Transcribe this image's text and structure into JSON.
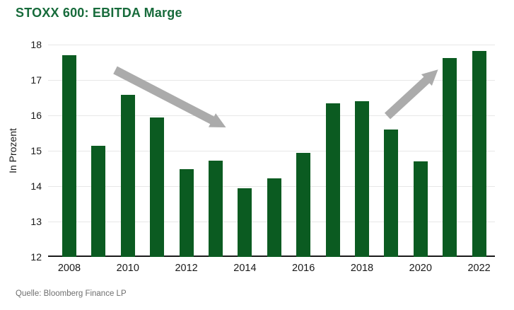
{
  "title": "STOXX 600: EBITDA Marge",
  "source": "Quelle: Bloomberg Finance LP",
  "colors": {
    "title-green": "#176b3b",
    "bar-green": "#0b5b21",
    "grid-gray": "#e7e7e7",
    "arrow-gray": "#ababab",
    "source-gray": "#6f6f6f"
  },
  "chart_data": {
    "type": "bar",
    "title": "STOXX 600: EBITDA Marge",
    "xlabel": "",
    "ylabel": "In Prozent",
    "ylim": [
      12,
      18
    ],
    "yticks": [
      12,
      13,
      14,
      15,
      16,
      17,
      18
    ],
    "grid": "horizontal",
    "legend": "none",
    "categories": [
      2008,
      2009,
      2010,
      2011,
      2012,
      2013,
      2014,
      2015,
      2016,
      2017,
      2018,
      2019,
      2020,
      2021,
      2022
    ],
    "values": [
      17.7,
      15.15,
      16.58,
      15.95,
      14.48,
      14.72,
      13.95,
      14.22,
      14.95,
      16.35,
      16.4,
      15.6,
      14.7,
      17.62,
      17.82
    ],
    "xticklabels": [
      "2008",
      "2010",
      "2012",
      "2014",
      "2016",
      "2018",
      "2020",
      "2022"
    ],
    "annotations": [
      {
        "type": "arrow",
        "name": "downtrend-arrow",
        "direction": "down-right",
        "color": "#ababab"
      },
      {
        "type": "arrow",
        "name": "uptrend-arrow",
        "direction": "up-right",
        "color": "#ababab"
      }
    ]
  }
}
